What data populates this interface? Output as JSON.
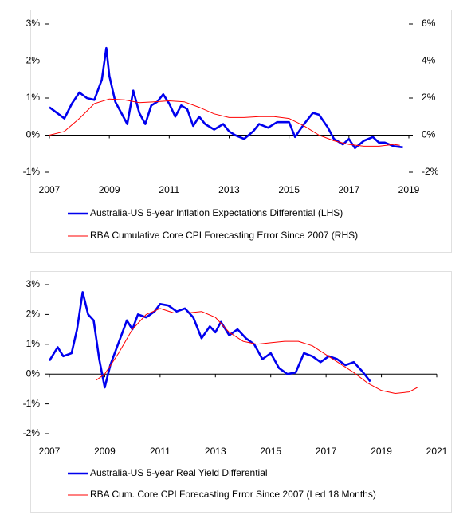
{
  "chart_data": [
    {
      "type": "line",
      "ylim": [
        -1,
        3
      ],
      "yticks": [
        {
          "value": -1,
          "label": "-1%"
        },
        {
          "value": 0,
          "label": "0%"
        },
        {
          "value": 1,
          "label": "1%"
        },
        {
          "value": 2,
          "label": "2%"
        },
        {
          "value": 3,
          "label": "3%"
        }
      ],
      "y2lim": [
        -2,
        6
      ],
      "y2ticks": [
        {
          "value": -2,
          "label": "-2%"
        },
        {
          "value": 0,
          "label": "0%"
        },
        {
          "value": 2,
          "label": "2%"
        },
        {
          "value": 4,
          "label": "4%"
        },
        {
          "value": 6,
          "label": "6%"
        }
      ],
      "xlim": [
        2007,
        2019
      ],
      "xticks": [
        2007,
        2009,
        2011,
        2013,
        2015,
        2017,
        2019
      ],
      "series": [
        {
          "name": "Australia-US 5-year Inflation Expectations Differential (LHS)",
          "color": "#0000ee",
          "x": [
            2007.0,
            2007.25,
            2007.5,
            2007.75,
            2008.0,
            2008.25,
            2008.5,
            2008.75,
            2008.9,
            2009.0,
            2009.2,
            2009.4,
            2009.6,
            2009.8,
            2010.0,
            2010.2,
            2010.4,
            2010.6,
            2010.8,
            2011.0,
            2011.2,
            2011.4,
            2011.6,
            2011.8,
            2012.0,
            2012.2,
            2012.5,
            2012.8,
            2013.0,
            2013.2,
            2013.5,
            2013.8,
            2014.0,
            2014.3,
            2014.6,
            2015.0,
            2015.2,
            2015.5,
            2015.8,
            2016.0,
            2016.3,
            2016.5,
            2016.8,
            2017.0,
            2017.2,
            2017.5,
            2017.8,
            2018.0,
            2018.2,
            2018.5,
            2018.8
          ],
          "values": [
            0.75,
            0.6,
            0.45,
            0.85,
            1.15,
            1.0,
            0.95,
            1.5,
            2.35,
            1.6,
            0.9,
            0.6,
            0.3,
            1.2,
            0.6,
            0.3,
            0.8,
            0.9,
            1.1,
            0.85,
            0.5,
            0.8,
            0.7,
            0.25,
            0.5,
            0.3,
            0.15,
            0.3,
            0.1,
            0.0,
            -0.1,
            0.1,
            0.3,
            0.2,
            0.35,
            0.35,
            -0.05,
            0.3,
            0.6,
            0.55,
            0.2,
            -0.1,
            -0.25,
            -0.1,
            -0.35,
            -0.15,
            -0.05,
            -0.2,
            -0.2,
            -0.3,
            -0.33
          ]
        },
        {
          "name": "RBA Cumulative Core CPI Forecasting Error Since 2007 (RHS)",
          "color": "#ff0000",
          "axis": "y2",
          "x": [
            2007.0,
            2007.5,
            2008.0,
            2008.5,
            2009.0,
            2009.5,
            2010.0,
            2010.5,
            2011.0,
            2011.5,
            2012.0,
            2012.5,
            2013.0,
            2013.5,
            2014.0,
            2014.5,
            2015.0,
            2015.5,
            2016.0,
            2016.5,
            2017.0,
            2017.5,
            2018.0,
            2018.5,
            2018.7
          ],
          "values": [
            0,
            0.2,
            0.9,
            1.7,
            1.95,
            1.9,
            1.75,
            1.8,
            1.85,
            1.8,
            1.5,
            1.15,
            0.95,
            0.95,
            1.0,
            1.0,
            0.9,
            0.5,
            0.0,
            -0.3,
            -0.5,
            -0.6,
            -0.6,
            -0.5,
            -0.55
          ]
        }
      ]
    },
    {
      "type": "line",
      "ylim": [
        -2,
        3
      ],
      "yticks": [
        {
          "value": -2,
          "label": "-2%"
        },
        {
          "value": -1,
          "label": "-1%"
        },
        {
          "value": 0,
          "label": "0%"
        },
        {
          "value": 1,
          "label": "1%"
        },
        {
          "value": 2,
          "label": "2%"
        },
        {
          "value": 3,
          "label": "3%"
        }
      ],
      "xlim": [
        2007,
        2021
      ],
      "xticks": [
        2007,
        2009,
        2011,
        2013,
        2015,
        2017,
        2019,
        2021
      ],
      "series": [
        {
          "name": "Australia-US 5-year Real Yield Differential",
          "color": "#0000ee",
          "x": [
            2007.0,
            2007.3,
            2007.5,
            2007.8,
            2008.0,
            2008.2,
            2008.4,
            2008.6,
            2008.8,
            2009.0,
            2009.2,
            2009.4,
            2009.6,
            2009.8,
            2010.0,
            2010.2,
            2010.5,
            2010.8,
            2011.0,
            2011.3,
            2011.6,
            2011.9,
            2012.2,
            2012.5,
            2012.8,
            2013.0,
            2013.2,
            2013.5,
            2013.8,
            2014.1,
            2014.4,
            2014.7,
            2015.0,
            2015.3,
            2015.6,
            2015.9,
            2016.2,
            2016.5,
            2016.8,
            2017.1,
            2017.4,
            2017.7,
            2018.0,
            2018.3,
            2018.6
          ],
          "values": [
            0.45,
            0.9,
            0.6,
            0.7,
            1.5,
            2.75,
            2.0,
            1.8,
            0.5,
            -0.45,
            0.3,
            0.8,
            1.3,
            1.8,
            1.5,
            2.0,
            1.9,
            2.1,
            2.35,
            2.3,
            2.1,
            2.2,
            1.9,
            1.2,
            1.6,
            1.4,
            1.75,
            1.3,
            1.5,
            1.2,
            1.0,
            0.5,
            0.7,
            0.2,
            0.0,
            0.05,
            0.7,
            0.6,
            0.4,
            0.6,
            0.5,
            0.3,
            0.4,
            0.1,
            -0.25
          ]
        },
        {
          "name": "RBA Cum. Core CPI Forecasting Error Since 2007 (Led 18 Months)",
          "color": "#ff0000",
          "x": [
            2008.7,
            2009.0,
            2009.5,
            2010.0,
            2010.5,
            2011.0,
            2011.5,
            2012.0,
            2012.5,
            2013.0,
            2013.5,
            2014.0,
            2014.5,
            2015.0,
            2015.5,
            2016.0,
            2016.5,
            2017.0,
            2017.5,
            2018.0,
            2018.5,
            2019.0,
            2019.5,
            2020.0,
            2020.3
          ],
          "values": [
            -0.2,
            0.0,
            0.7,
            1.5,
            2.0,
            2.2,
            2.05,
            2.05,
            2.1,
            1.9,
            1.4,
            1.1,
            1.0,
            1.05,
            1.1,
            1.1,
            0.95,
            0.65,
            0.35,
            0.05,
            -0.3,
            -0.55,
            -0.65,
            -0.6,
            -0.45
          ]
        }
      ]
    }
  ]
}
